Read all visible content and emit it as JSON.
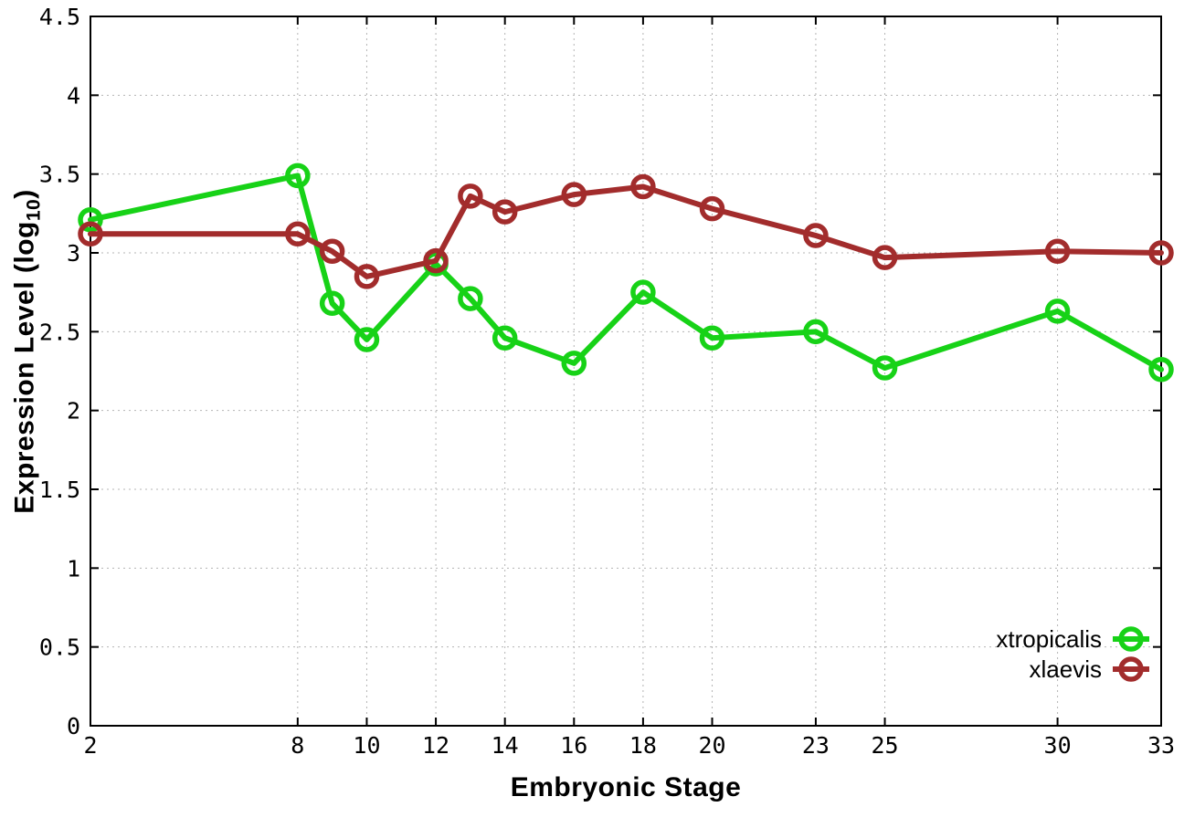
{
  "chart_data": {
    "type": "line",
    "x": [
      2,
      8,
      9,
      10,
      12,
      13,
      14,
      16,
      18,
      20,
      23,
      25,
      30,
      33
    ],
    "series": [
      {
        "name": "xtropicalis",
        "color": "#17d217",
        "values": [
          3.21,
          3.49,
          2.68,
          2.45,
          2.93,
          2.71,
          2.46,
          2.3,
          2.75,
          2.46,
          2.5,
          2.27,
          2.63,
          2.26
        ]
      },
      {
        "name": "xlaevis",
        "color": "#a22c2c",
        "values": [
          3.12,
          3.12,
          3.01,
          2.85,
          2.95,
          3.36,
          3.26,
          3.37,
          3.42,
          3.28,
          3.11,
          2.97,
          3.01,
          3.0
        ]
      }
    ],
    "title": "",
    "xlabel": "Embryonic Stage",
    "ylabel_main": "Expression Level (log",
    "ylabel_sub": "10",
    "ylabel_close": ")",
    "xlim": [
      2,
      33
    ],
    "ylim": [
      0,
      4.5
    ],
    "xticks": {
      "values": [
        2,
        8,
        10,
        12,
        14,
        16,
        18,
        20,
        23,
        25,
        30,
        33
      ],
      "labels": [
        "2",
        "8",
        "10",
        "12",
        "14",
        "16",
        "18",
        "20",
        "23",
        "25",
        "30",
        "33"
      ]
    },
    "yticks": {
      "values": [
        0,
        0.5,
        1,
        1.5,
        2,
        2.5,
        3,
        3.5,
        4,
        4.5
      ],
      "labels": [
        "0",
        "0.5",
        "1",
        "1.5",
        "2",
        "2.5",
        "3",
        "3.5",
        "4",
        "4.5"
      ]
    },
    "grid": true,
    "legend_position": "bottom-right",
    "colors": {
      "axis": "#000000",
      "grid": "#b4b4b4",
      "text": "#000000",
      "background": "#ffffff"
    }
  }
}
